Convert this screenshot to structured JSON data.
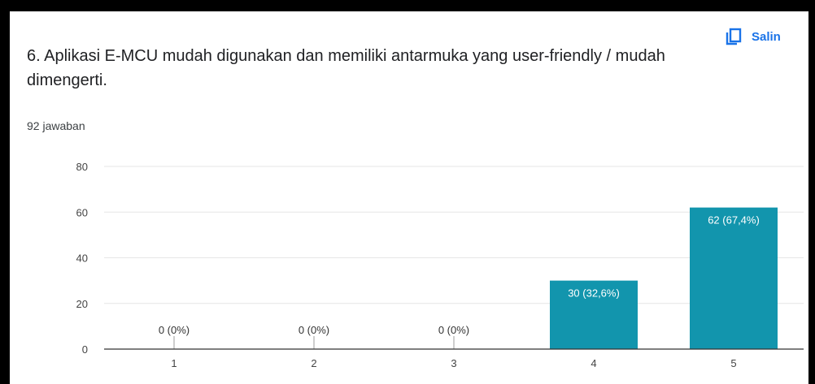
{
  "question": {
    "title": "6. Aplikasi E-MCU mudah digunakan dan memiliki antarmuka yang user-friendly / mudah dimengerti.",
    "response_count": "92 jawaban"
  },
  "toolbar": {
    "copy_label": "Salin",
    "copy_icon": "copy-icon"
  },
  "colors": {
    "bar": "#1295ad",
    "link": "#1a73e8"
  },
  "chart_data": {
    "type": "bar",
    "categories": [
      "1",
      "2",
      "3",
      "4",
      "5"
    ],
    "values": [
      0,
      0,
      0,
      30,
      62
    ],
    "data_labels": [
      "0 (0%)",
      "0 (0%)",
      "0 (0%)",
      "30 (32,6%)",
      "62 (67,4%)"
    ],
    "yticks": [
      0,
      20,
      40,
      60,
      80
    ],
    "ylim": [
      0,
      80
    ],
    "title": "",
    "xlabel": "",
    "ylabel": "",
    "grid": true,
    "legend": "none"
  }
}
